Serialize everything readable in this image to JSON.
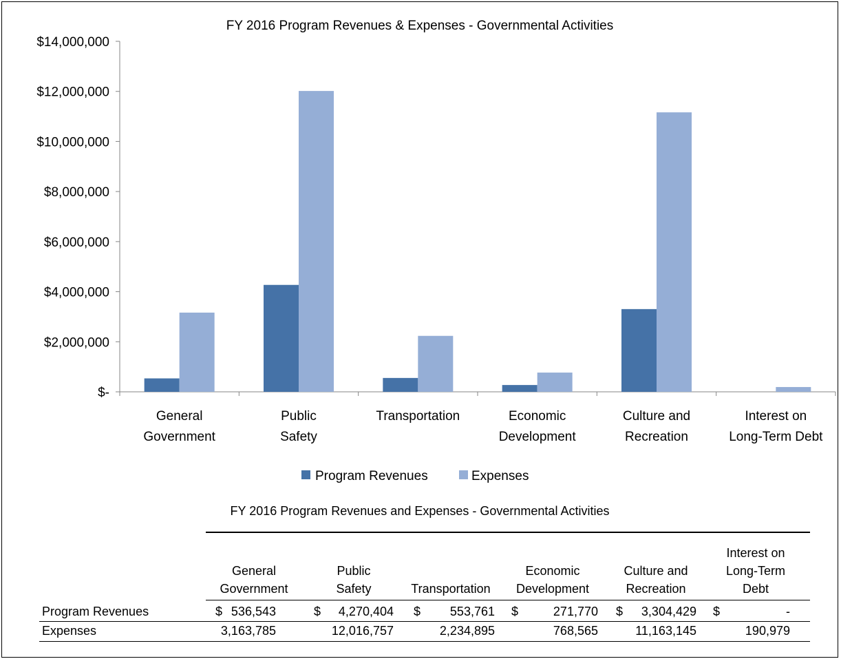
{
  "chart_data": {
    "type": "bar",
    "title": "FY 2016 Program Revenues & Expenses - Governmental  Activities",
    "categories": [
      [
        "General",
        "Government"
      ],
      [
        "Public",
        "Safety"
      ],
      [
        "Transportation"
      ],
      [
        "Economic",
        "Development"
      ],
      [
        "Culture and",
        "Recreation"
      ],
      [
        "Interest on",
        "Long-Term Debt"
      ]
    ],
    "series": [
      {
        "name": "Program Revenues",
        "color": "#4572a7",
        "values": [
          536543,
          4270404,
          553761,
          271770,
          3304429,
          0
        ]
      },
      {
        "name": "Expenses",
        "color": "#95aed6",
        "values": [
          3163785,
          12016757,
          2234895,
          768565,
          11163145,
          190979
        ]
      }
    ],
    "ylim": [
      0,
      14000000
    ],
    "yticks": [
      {
        "value": 14000000,
        "label": "$14,000,000"
      },
      {
        "value": 12000000,
        "label": "$12,000,000"
      },
      {
        "value": 10000000,
        "label": "$10,000,000"
      },
      {
        "value": 8000000,
        "label": "$8,000,000"
      },
      {
        "value": 6000000,
        "label": "$6,000,000"
      },
      {
        "value": 4000000,
        "label": "$4,000,000"
      },
      {
        "value": 2000000,
        "label": "$2,000,000"
      },
      {
        "value": 0,
        "label": "$-"
      }
    ],
    "grid": false,
    "legend": "bottom"
  },
  "table": {
    "title": "FY 2016 Program Revenues and Expenses - Governmental Activities",
    "columns": [
      [
        "General",
        "Government"
      ],
      [
        "Public",
        "Safety"
      ],
      [
        "Transportation"
      ],
      [
        "Economic",
        "Development"
      ],
      [
        "Culture and",
        "Recreation"
      ],
      [
        "Interest on",
        "Long-Term",
        "Debt"
      ]
    ],
    "rows": [
      {
        "label": "Program Revenues",
        "currency": "$",
        "values": [
          "536,543",
          "4,270,404",
          "553,761",
          "271,770",
          "3,304,429",
          "-"
        ]
      },
      {
        "label": "Expenses",
        "currency": "",
        "values": [
          "3,163,785",
          "12,016,757",
          "2,234,895",
          "768,565",
          "11,163,145",
          "190,979"
        ]
      }
    ]
  }
}
